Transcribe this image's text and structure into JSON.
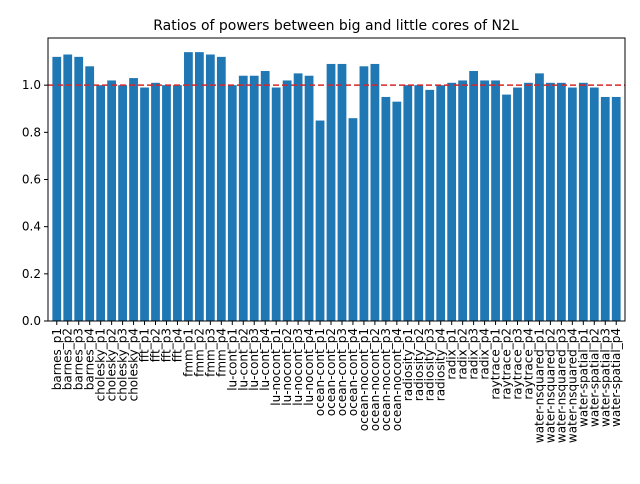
{
  "chart_data": {
    "type": "bar",
    "title": "Ratios of powers between big and little cores of N2L",
    "categories": [
      "barnes_p1",
      "barnes_p2",
      "barnes_p3",
      "barnes_p4",
      "cholesky_p1",
      "cholesky_p2",
      "cholesky_p3",
      "cholesky_p4",
      "fft_p1",
      "fft_p2",
      "fft_p3",
      "fft_p4",
      "fmm_p1",
      "fmm_p2",
      "fmm_p3",
      "fmm_p4",
      "lu-cont_p1",
      "lu-cont_p2",
      "lu-cont_p3",
      "lu-cont_p4",
      "lu-nocont_p1",
      "lu-nocont_p2",
      "lu-nocont_p3",
      "lu-nocont_p4",
      "ocean-cont_p1",
      "ocean-cont_p2",
      "ocean-cont_p3",
      "ocean-cont_p4",
      "ocean-nocont_p1",
      "ocean-nocont_p2",
      "ocean-nocont_p3",
      "ocean-nocont_p4",
      "radiosity_p1",
      "radiosity_p2",
      "radiosity_p3",
      "radiosity_p4",
      "radix_p1",
      "radix_p2",
      "radix_p3",
      "radix_p4",
      "raytrace_p1",
      "raytrace_p2",
      "raytrace_p3",
      "raytrace_p4",
      "water-nsquared_p1",
      "water-nsquared_p2",
      "water-nsquared_p3",
      "water-nsquared_p4",
      "water-spatial_p1",
      "water-spatial_p2",
      "water-spatial_p3",
      "water-spatial_p4"
    ],
    "values": [
      1.12,
      1.13,
      1.12,
      1.08,
      1.0,
      1.02,
      1.0,
      1.03,
      0.99,
      1.01,
      1.0,
      1.0,
      1.14,
      1.14,
      1.13,
      1.12,
      1.0,
      1.04,
      1.04,
      1.06,
      0.99,
      1.02,
      1.05,
      1.04,
      0.85,
      1.09,
      1.09,
      0.86,
      1.08,
      1.09,
      0.95,
      0.93,
      1.0,
      1.0,
      0.98,
      1.0,
      1.01,
      1.02,
      1.06,
      1.02,
      1.02,
      0.96,
      0.99,
      1.01,
      1.05,
      1.01,
      1.01,
      0.99,
      1.01,
      0.99,
      0.95,
      0.95
    ],
    "color": "#1f77b4",
    "ylim": [
      0,
      1.2
    ],
    "yticks": [
      {
        "value": 0,
        "label": "0.0"
      },
      0.2,
      0.4,
      0.6,
      0.8,
      {
        "value": 1,
        "label": "1.0"
      }
    ],
    "hline": 1.0,
    "hline_color": "#d62728"
  }
}
